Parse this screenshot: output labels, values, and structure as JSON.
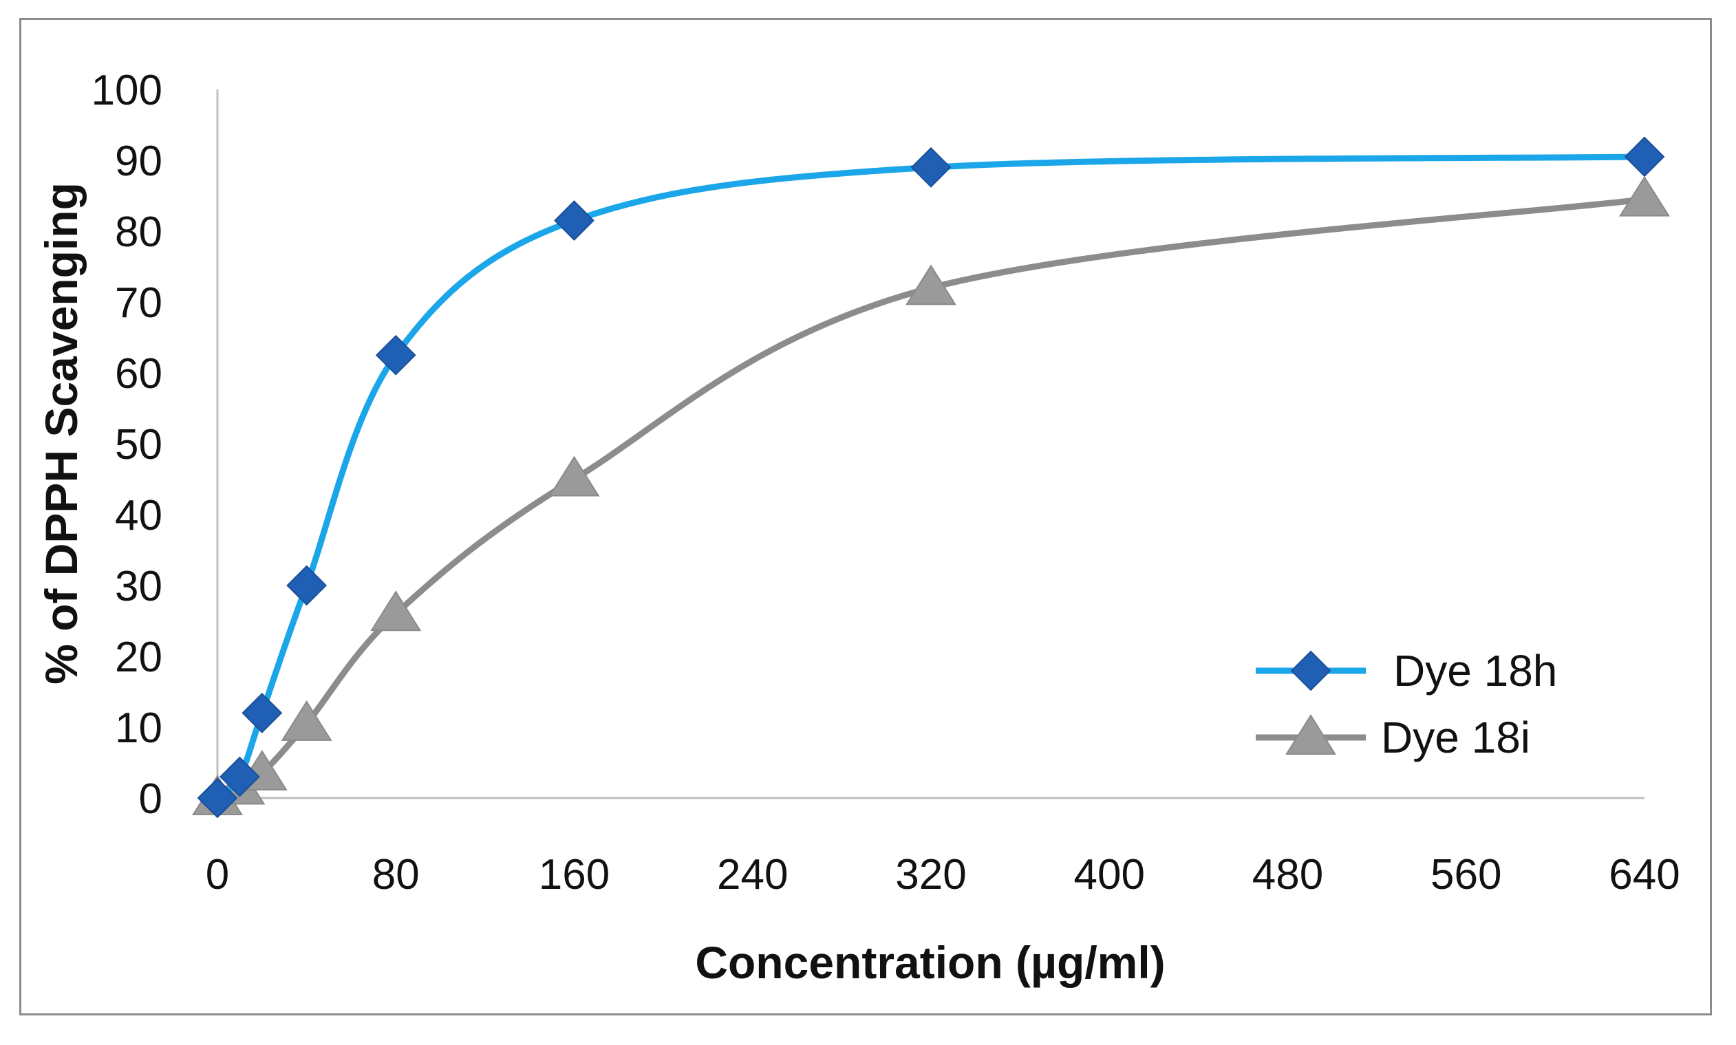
{
  "chart_data": {
    "type": "line",
    "xlabel": "Concentration (µg/ml)",
    "ylabel": "% of DPPH  Scavenging",
    "xlim": [
      0,
      640
    ],
    "ylim": [
      0,
      100
    ],
    "x_ticks": [
      0,
      80,
      160,
      240,
      320,
      400,
      480,
      560,
      640
    ],
    "y_ticks": [
      0,
      10,
      20,
      30,
      40,
      50,
      60,
      70,
      80,
      90,
      100
    ],
    "grid": false,
    "legend_position": "bottom-right",
    "series": [
      {
        "name": "Dye 18h",
        "marker": "diamond",
        "line_color": "#1aa6e8",
        "marker_color": "#1f5fb4",
        "x": [
          0,
          10,
          20,
          40,
          80,
          160,
          320,
          640
        ],
        "y": [
          0,
          3,
          12,
          30,
          62.5,
          81.5,
          89,
          90.5
        ]
      },
      {
        "name": "Dye 18i",
        "marker": "triangle",
        "line_color": "#8c8c8c",
        "marker_color": "#9a9a9a",
        "x": [
          0,
          10,
          20,
          40,
          80,
          160,
          320,
          640
        ],
        "y": [
          0,
          1.5,
          3.5,
          10.5,
          26,
          45,
          72,
          84.5
        ]
      }
    ]
  }
}
